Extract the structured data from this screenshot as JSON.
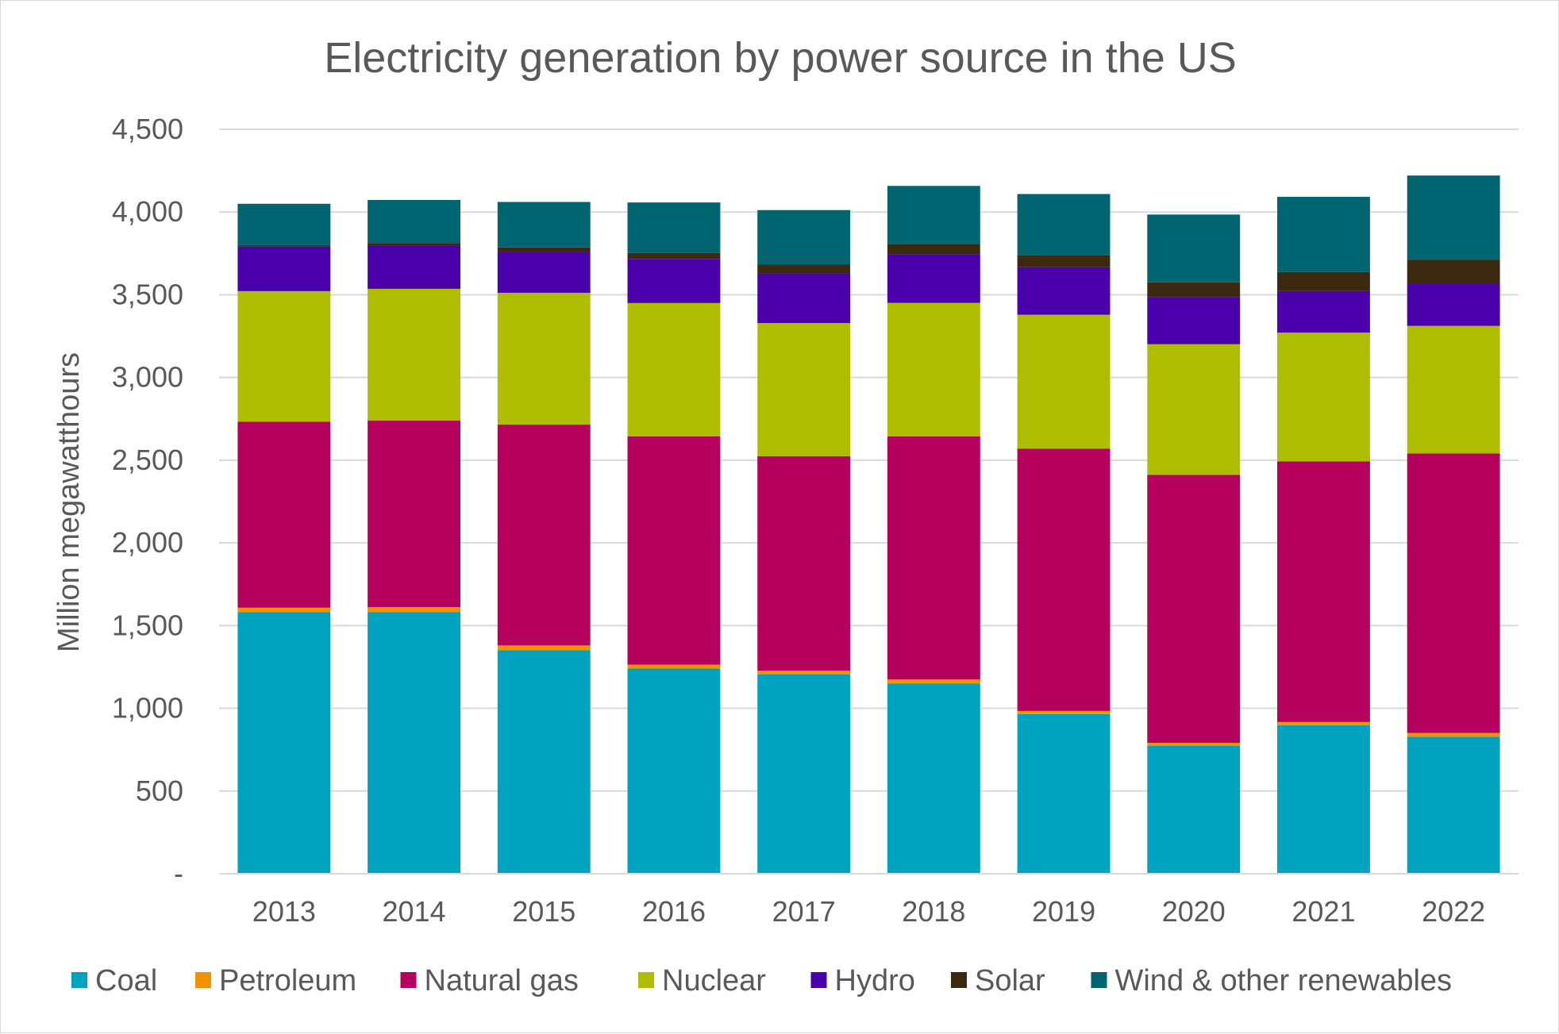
{
  "chart_data": {
    "type": "bar",
    "stacked": true,
    "title": "Electricity generation by power source in the US",
    "xlabel": "",
    "ylabel": "Million megawatthours",
    "ylim": [
      0,
      4500
    ],
    "yticks": [
      {
        "value": 0,
        "label": "-"
      },
      {
        "value": 500,
        "label": "500"
      },
      {
        "value": 1000,
        "label": "1,000"
      },
      {
        "value": 1500,
        "label": "1,500"
      },
      {
        "value": 2000,
        "label": "2,000"
      },
      {
        "value": 2500,
        "label": "2,500"
      },
      {
        "value": 3000,
        "label": "3,000"
      },
      {
        "value": 3500,
        "label": "3,500"
      },
      {
        "value": 4000,
        "label": "4,000"
      },
      {
        "value": 4500,
        "label": "4,500"
      }
    ],
    "grid": true,
    "legend_position": "bottom",
    "categories": [
      "2013",
      "2014",
      "2015",
      "2016",
      "2017",
      "2018",
      "2019",
      "2020",
      "2021",
      "2022"
    ],
    "series": [
      {
        "name": "Coal",
        "color": "#00A3BF",
        "values": [
          1581,
          1582,
          1352,
          1240,
          1206,
          1149,
          965,
          774,
          898,
          828
        ]
      },
      {
        "name": "Petroleum",
        "color": "#F39200",
        "values": [
          27,
          30,
          28,
          24,
          21,
          25,
          19,
          17,
          19,
          23
        ]
      },
      {
        "name": "Natural gas",
        "color": "#B5005E",
        "values": [
          1125,
          1127,
          1335,
          1380,
          1297,
          1470,
          1586,
          1620,
          1576,
          1689
        ]
      },
      {
        "name": "Nuclear",
        "color": "#AFBD00",
        "values": [
          789,
          797,
          797,
          806,
          805,
          807,
          809,
          790,
          778,
          772
        ]
      },
      {
        "name": "Hydro",
        "color": "#4A00AA",
        "values": [
          269,
          259,
          249,
          267,
          300,
          293,
          288,
          285,
          251,
          255
        ]
      },
      {
        "name": "Solar",
        "color": "#3B2A10",
        "values": [
          9,
          18,
          25,
          36,
          53,
          64,
          72,
          89,
          115,
          144
        ]
      },
      {
        "name": "Wind & other renewables",
        "color": "#006570",
        "values": [
          250,
          260,
          275,
          305,
          330,
          350,
          370,
          410,
          455,
          510
        ]
      }
    ]
  }
}
